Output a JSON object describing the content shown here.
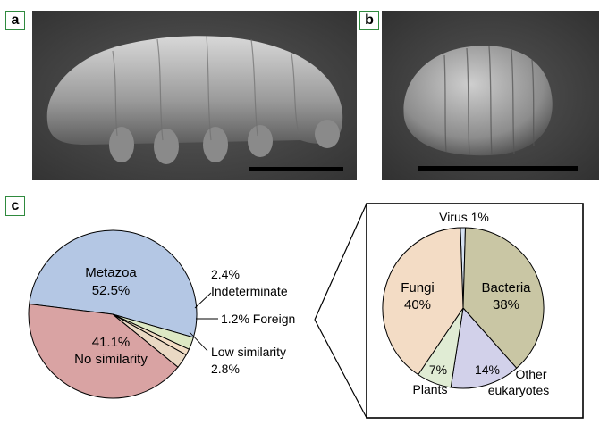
{
  "panels": {
    "a": {
      "label": "a"
    },
    "b": {
      "label": "b"
    },
    "c": {
      "label": "c"
    }
  },
  "colors": {
    "metazoa": "#b4c7e4",
    "no_similarity": "#d9a3a3",
    "indeterminate": "#dde8c4",
    "foreign": "#f2ddc5",
    "low_similarity": "#ead9c4",
    "bacteria": "#c9c6a4",
    "other_eukaryotes": "#d2d1ea",
    "plants": "#e0ecd4",
    "fungi": "#f3dcc5",
    "virus": "#d6e2f2"
  },
  "chart_data": [
    {
      "type": "pie",
      "slices": [
        {
          "label": "Metazoa",
          "value": 52.5,
          "display": "52.5%"
        },
        {
          "label": "Indeterminate",
          "value": 2.4,
          "display": "2.4%"
        },
        {
          "label": "Foreign",
          "value": 1.2,
          "display": "1.2% Foreign"
        },
        {
          "label": "Low similarity",
          "value": 2.8,
          "display": "2.8%"
        },
        {
          "label": "No similarity",
          "value": 41.1,
          "display": "41.1%"
        }
      ]
    },
    {
      "type": "pie",
      "slices": [
        {
          "label": "Virus",
          "value": 1,
          "display": "Virus 1%"
        },
        {
          "label": "Bacteria",
          "value": 38,
          "display": "38%"
        },
        {
          "label": "Other eukaryotes",
          "value": 14,
          "display": "14%",
          "label_lines": [
            "Other",
            "eukaryotes"
          ]
        },
        {
          "label": "Plants",
          "value": 7,
          "display": "7%"
        },
        {
          "label": "Fungi",
          "value": 40,
          "display": "40%"
        }
      ]
    }
  ]
}
